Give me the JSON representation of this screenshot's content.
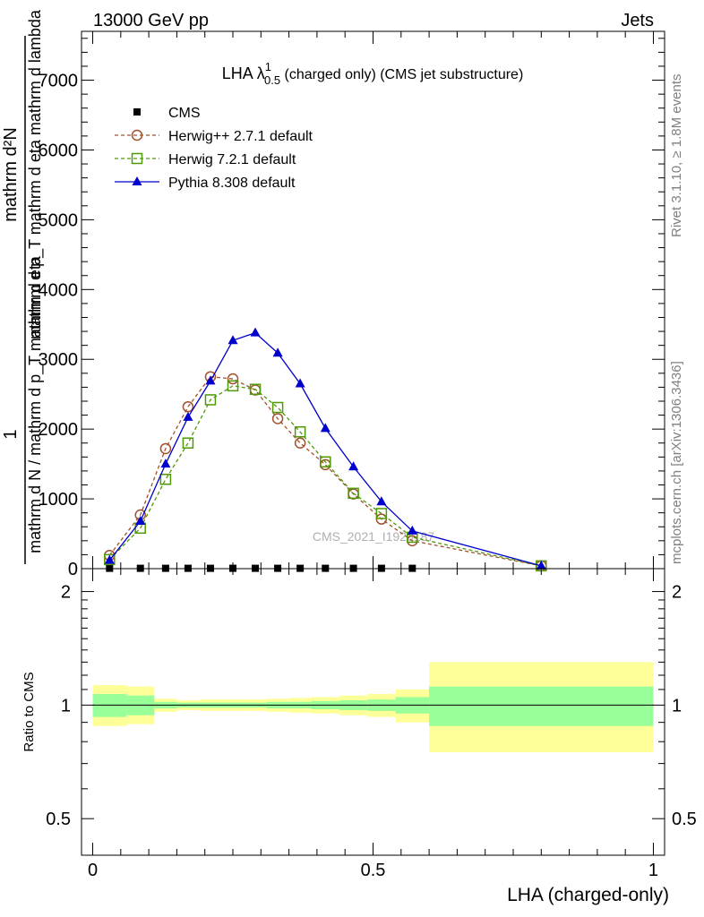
{
  "header": {
    "left": "13000 GeV pp",
    "right": "Jets"
  },
  "side_labels": {
    "rivet": "Rivet 3.1.10, ≥ 1.8M events",
    "mcplots": "mcplots.cern.ch [arXiv:1306.3436]"
  },
  "watermark": "CMS_2021_I1920187",
  "chart_data": [
    {
      "type": "line",
      "title": "LHA λ",
      "title_super": "1",
      "title_sub": "0.5",
      "title_suffix": " (charged only) (CMS jet substructure)",
      "ylabel_lines": [
        "1",
        "mathrm d N / mathrm d p_T mathrm d eta",
        "mathrm d²N",
        "mathrm d p_T mathrm d eta mathrm d lambda"
      ],
      "ylim": [
        0,
        7700
      ],
      "xlim": [
        -0.02,
        1.02
      ],
      "yticks": [
        0,
        1000,
        2000,
        3000,
        4000,
        5000,
        6000,
        7000
      ],
      "ytick_labels": [
        "0",
        "1000",
        "2000",
        "3000",
        "4000",
        "5000",
        "6000",
        "7000"
      ],
      "legend_position": "top-left",
      "series": [
        {
          "name": "CMS",
          "color": "#000000",
          "marker": "square-filled",
          "x": [
            0.03,
            0.085,
            0.13,
            0.17,
            0.21,
            0.25,
            0.29,
            0.33,
            0.37,
            0.415,
            0.465,
            0.515,
            0.57
          ],
          "values": [
            5,
            5,
            5,
            5,
            5,
            5,
            5,
            5,
            5,
            5,
            5,
            5,
            5
          ]
        },
        {
          "name": "Herwig++ 2.7.1 default",
          "color": "#a0522d",
          "marker": "circle-open",
          "dashed": true,
          "x": [
            0.03,
            0.085,
            0.13,
            0.17,
            0.21,
            0.25,
            0.29,
            0.33,
            0.37,
            0.415,
            0.465,
            0.515,
            0.57,
            0.8
          ],
          "values": [
            190,
            770,
            1720,
            2320,
            2750,
            2720,
            2560,
            2150,
            1800,
            1490,
            1070,
            710,
            400,
            40
          ]
        },
        {
          "name": "Herwig 7.2.1 default",
          "color": "#4e9a06",
          "marker": "square-open",
          "dashed": true,
          "x": [
            0.03,
            0.085,
            0.13,
            0.17,
            0.21,
            0.25,
            0.29,
            0.33,
            0.37,
            0.415,
            0.465,
            0.515,
            0.57,
            0.8
          ],
          "values": [
            130,
            580,
            1280,
            1800,
            2420,
            2620,
            2570,
            2310,
            1960,
            1530,
            1080,
            790,
            450,
            40
          ]
        },
        {
          "name": "Pythia 8.308 default",
          "color": "#0000cc",
          "marker": "triangle-filled",
          "dashed": false,
          "x": [
            0.03,
            0.085,
            0.13,
            0.17,
            0.21,
            0.25,
            0.29,
            0.33,
            0.37,
            0.415,
            0.465,
            0.515,
            0.57,
            0.8
          ],
          "values": [
            120,
            680,
            1500,
            2170,
            2690,
            3270,
            3380,
            3090,
            2650,
            2010,
            1460,
            960,
            540,
            40
          ]
        }
      ]
    },
    {
      "type": "area",
      "ylabel": "Ratio to CMS",
      "xlabel": "LHA (charged-only)",
      "xlim": [
        -0.02,
        1.02
      ],
      "xticks": [
        0,
        0.5,
        1
      ],
      "xtick_labels": [
        "0",
        "0.5",
        "1"
      ],
      "ylim": [
        0.4,
        2.3
      ],
      "yticks": [
        0.5,
        1,
        2
      ],
      "ytick_labels": [
        "0.5",
        "1",
        "2"
      ],
      "reference_line": 1,
      "bins": [
        {
          "x0": 0.0,
          "x1": 0.06,
          "inner": [
            0.93,
            1.07
          ],
          "outer": [
            0.88,
            1.13
          ]
        },
        {
          "x0": 0.06,
          "x1": 0.11,
          "inner": [
            0.94,
            1.06
          ],
          "outer": [
            0.89,
            1.12
          ]
        },
        {
          "x0": 0.11,
          "x1": 0.15,
          "inner": [
            0.98,
            1.02
          ],
          "outer": [
            0.96,
            1.04
          ]
        },
        {
          "x0": 0.15,
          "x1": 0.19,
          "inner": [
            0.985,
            1.015
          ],
          "outer": [
            0.97,
            1.03
          ]
        },
        {
          "x0": 0.19,
          "x1": 0.23,
          "inner": [
            0.985,
            1.015
          ],
          "outer": [
            0.965,
            1.035
          ]
        },
        {
          "x0": 0.23,
          "x1": 0.27,
          "inner": [
            0.985,
            1.015
          ],
          "outer": [
            0.965,
            1.035
          ]
        },
        {
          "x0": 0.27,
          "x1": 0.31,
          "inner": [
            0.985,
            1.015
          ],
          "outer": [
            0.965,
            1.035
          ]
        },
        {
          "x0": 0.31,
          "x1": 0.35,
          "inner": [
            0.98,
            1.02
          ],
          "outer": [
            0.96,
            1.04
          ]
        },
        {
          "x0": 0.35,
          "x1": 0.39,
          "inner": [
            0.98,
            1.02
          ],
          "outer": [
            0.955,
            1.045
          ]
        },
        {
          "x0": 0.39,
          "x1": 0.44,
          "inner": [
            0.975,
            1.025
          ],
          "outer": [
            0.95,
            1.05
          ]
        },
        {
          "x0": 0.44,
          "x1": 0.49,
          "inner": [
            0.97,
            1.03
          ],
          "outer": [
            0.94,
            1.06
          ]
        },
        {
          "x0": 0.49,
          "x1": 0.54,
          "inner": [
            0.965,
            1.035
          ],
          "outer": [
            0.93,
            1.07
          ]
        },
        {
          "x0": 0.54,
          "x1": 0.6,
          "inner": [
            0.95,
            1.05
          ],
          "outer": [
            0.9,
            1.1
          ]
        },
        {
          "x0": 0.6,
          "x1": 1.0,
          "inner": [
            0.88,
            1.12
          ],
          "outer": [
            0.75,
            1.3
          ]
        }
      ],
      "colors": {
        "inner": "#99ff99",
        "outer": "#ffff99"
      }
    }
  ]
}
